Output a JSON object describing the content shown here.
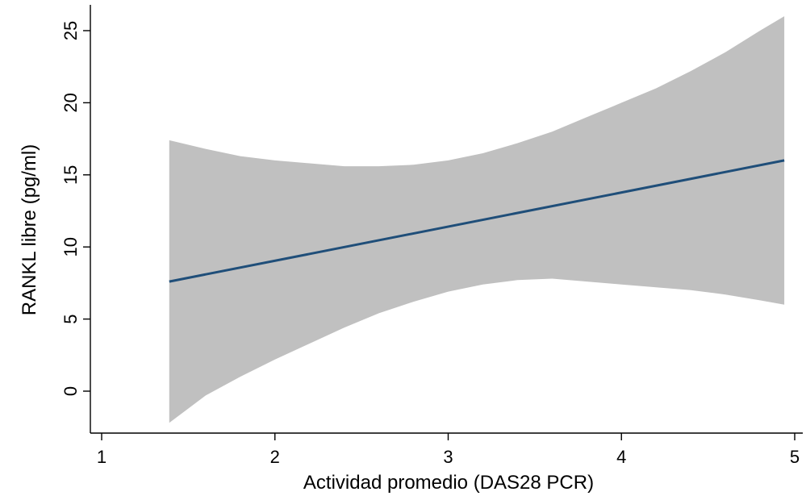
{
  "chart_data": {
    "type": "line",
    "title": "",
    "xlabel": "Actividad promedio (DAS28 PCR)",
    "ylabel": "RANKL libre (pg/ml)",
    "xlim": [
      1,
      5
    ],
    "ylim": [
      -3,
      27
    ],
    "x_ticks": [
      1,
      2,
      3,
      4,
      5
    ],
    "y_ticks": [
      0,
      5,
      10,
      15,
      20,
      25
    ],
    "grid": false,
    "legend": "none",
    "series": [
      {
        "type": "line",
        "color": "#1f4e79",
        "x": [
          1.39,
          4.94
        ],
        "y": [
          7.6,
          16.0
        ]
      }
    ],
    "confidence_band": {
      "color": "#c0c0c0",
      "x": [
        1.39,
        1.6,
        1.8,
        2.0,
        2.2,
        2.4,
        2.6,
        2.8,
        3.0,
        3.2,
        3.4,
        3.6,
        3.8,
        4.0,
        4.2,
        4.4,
        4.6,
        4.8,
        4.94
      ],
      "lower": [
        -2.2,
        -0.3,
        1.0,
        2.2,
        3.3,
        4.4,
        5.4,
        6.2,
        6.9,
        7.4,
        7.7,
        7.8,
        7.6,
        7.4,
        7.2,
        7.0,
        6.7,
        6.3,
        6.0
      ],
      "upper": [
        17.4,
        16.8,
        16.3,
        16.0,
        15.8,
        15.6,
        15.6,
        15.7,
        16.0,
        16.5,
        17.2,
        18.0,
        19.0,
        20.0,
        21.0,
        22.2,
        23.5,
        25.0,
        26.0
      ]
    }
  }
}
